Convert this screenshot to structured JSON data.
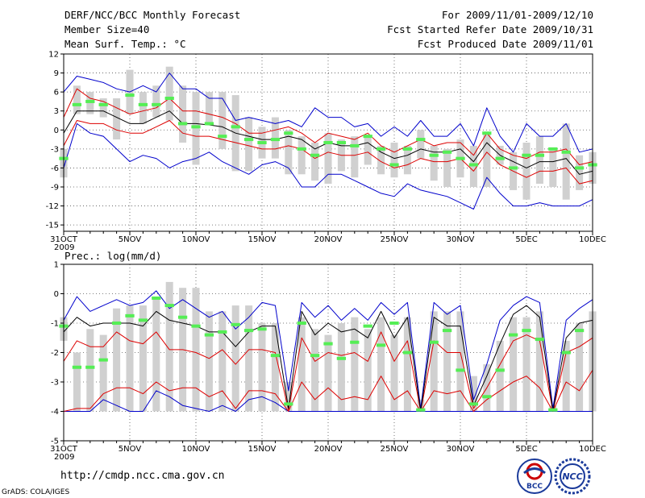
{
  "header": {
    "title": "DERF/NCC/BCC Monthly Forecast",
    "member_size": "Member Size=40",
    "variable": "Mean Surf. Temp.: °C",
    "period": "For 2009/11/01-2009/12/10",
    "started": "Fcst Started Refer Date 2009/10/31",
    "produced": "Fcst Produced Date 2009/11/01"
  },
  "footer": {
    "url": "http://cmdp.ncc.cma.gov.cn",
    "credit": "GrADS: COLA/IGES",
    "logo_bcc": "BCC",
    "logo_ncc": "NCC"
  },
  "colors": {
    "bar": "#d0d0d0",
    "median": "#55ee55",
    "mean": "#000000",
    "inner": "#dd0000",
    "outer": "#0000cc",
    "grid": "#555555"
  },
  "chart_data": [
    {
      "type": "line",
      "title": "Mean Surf. Temp.: °C",
      "x_labels": [
        {
          "day": 1,
          "label": "31OCT"
        },
        {
          "day": 6,
          "label": "5NOV"
        },
        {
          "day": 11,
          "label": "10NOV"
        },
        {
          "day": 16,
          "label": "15NOV"
        },
        {
          "day": 21,
          "label": "20NOV"
        },
        {
          "day": 26,
          "label": "25NOV"
        },
        {
          "day": 31,
          "label": "30NOV"
        },
        {
          "day": 36,
          "label": "5DEC"
        },
        {
          "day": 41,
          "label": "10DEC"
        }
      ],
      "x_sub_label": "2009",
      "xlim": [
        1,
        41
      ],
      "ylim": [
        -16,
        12
      ],
      "yticks": [
        12,
        9,
        6,
        3,
        0,
        -3,
        -6,
        -9,
        -12,
        -15
      ],
      "ytick_labels": [
        "12",
        "9",
        "6",
        "3",
        "0",
        "-3",
        "-6",
        "-9",
        "-12",
        "-15"
      ],
      "days": [
        1,
        2,
        3,
        4,
        5,
        6,
        7,
        8,
        9,
        10,
        11,
        12,
        13,
        14,
        15,
        16,
        17,
        18,
        19,
        20,
        21,
        22,
        23,
        24,
        25,
        26,
        27,
        28,
        29,
        30,
        31,
        32,
        33,
        34,
        35,
        36,
        37,
        38,
        39,
        40,
        41
      ],
      "bar_low": [
        -7.5,
        2.5,
        2.5,
        2.0,
        -1.5,
        2.5,
        1.0,
        2.0,
        1.5,
        -2.0,
        -5.5,
        1.0,
        -3.0,
        -6.5,
        -6.5,
        -4.5,
        -4.5,
        -7.0,
        -7.0,
        -8.0,
        -8.5,
        -6.5,
        -7.5,
        -5.5,
        -7.0,
        -7.5,
        -7.0,
        -4.5,
        -8.0,
        -9.0,
        -7.5,
        -9.0,
        -9.0,
        -5.5,
        -9.5,
        -11.0,
        -8.5,
        -9.0,
        -11.0,
        -9.5,
        -8.5
      ],
      "bar_high": [
        -3.0,
        7.0,
        6.0,
        5.0,
        5.0,
        9.5,
        6.0,
        7.0,
        10.0,
        7.0,
        6.0,
        6.0,
        6.0,
        5.5,
        2.0,
        0.5,
        2.0,
        0.0,
        -1.0,
        -2.0,
        -0.5,
        -1.5,
        -1.0,
        -1.0,
        -2.5,
        -2.0,
        -2.5,
        0.0,
        -2.5,
        -3.0,
        -1.5,
        -2.5,
        -0.5,
        -2.5,
        -3.5,
        -2.0,
        -1.0,
        -3.0,
        1.0,
        -4.0,
        -3.5
      ],
      "median": [
        -4.5,
        4.0,
        4.5,
        4.0,
        null,
        5.5,
        4.0,
        4.0,
        5.0,
        1.0,
        0.5,
        1.0,
        -1.0,
        0.5,
        -1.5,
        -2.0,
        -1.5,
        -0.5,
        -3.0,
        -4.0,
        -2.0,
        -2.0,
        -2.5,
        -1.0,
        -3.0,
        -5.5,
        -3.0,
        -1.5,
        -4.0,
        -3.5,
        -4.5,
        -5.5,
        -0.5,
        -4.5,
        -6.0,
        -4.0,
        -4.0,
        -3.0,
        -3.5,
        -6.0,
        -5.5
      ],
      "mean": [
        -0.5,
        3.0,
        3.0,
        3.0,
        2.0,
        1.0,
        1.0,
        2.0,
        3.0,
        1.0,
        1.0,
        0.8,
        0.5,
        -0.5,
        -1.0,
        -1.5,
        -1.5,
        -1.0,
        -1.5,
        -3.0,
        -2.0,
        -2.5,
        -2.5,
        -2.0,
        -3.5,
        -4.5,
        -4.0,
        -3.0,
        -3.5,
        -3.5,
        -3.0,
        -5.0,
        -2.0,
        -4.0,
        -5.0,
        -6.0,
        -5.0,
        -5.0,
        -4.5,
        -7.0,
        -6.5
      ],
      "inner_upper": [
        2.0,
        6.5,
        5.0,
        4.5,
        3.5,
        2.5,
        3.0,
        3.5,
        5.0,
        3.0,
        3.0,
        2.5,
        2.0,
        1.0,
        -0.5,
        -0.5,
        0.0,
        0.5,
        -0.5,
        -2.0,
        -0.5,
        -1.0,
        -1.5,
        -0.5,
        -2.5,
        -3.5,
        -2.5,
        -1.5,
        -2.5,
        -2.0,
        -2.0,
        -4.0,
        -0.5,
        -3.0,
        -4.0,
        -4.5,
        -3.5,
        -3.5,
        -3.0,
        -5.5,
        -5.0
      ],
      "inner_lower": [
        -2.5,
        1.5,
        1.0,
        1.0,
        0.0,
        -0.5,
        -0.5,
        0.5,
        1.5,
        -0.5,
        -1.0,
        -1.0,
        -1.5,
        -2.0,
        -2.5,
        -3.0,
        -3.0,
        -2.5,
        -3.0,
        -4.5,
        -3.5,
        -4.0,
        -4.0,
        -3.5,
        -5.0,
        -6.0,
        -5.5,
        -4.5,
        -5.0,
        -5.0,
        -4.5,
        -6.5,
        -3.5,
        -5.5,
        -6.5,
        -7.5,
        -6.5,
        -6.5,
        -6.0,
        -8.5,
        -8.0
      ],
      "outer_upper": [
        6.0,
        8.5,
        8.0,
        7.5,
        6.5,
        6.0,
        7.0,
        6.0,
        9.0,
        6.5,
        6.5,
        5.0,
        5.0,
        1.5,
        2.0,
        1.5,
        1.0,
        1.5,
        0.5,
        3.5,
        2.0,
        2.0,
        0.5,
        1.0,
        -1.0,
        0.5,
        -1.0,
        1.5,
        -1.0,
        -1.0,
        1.0,
        -2.5,
        3.5,
        -1.0,
        -3.5,
        1.0,
        -1.0,
        -1.0,
        1.0,
        -3.5,
        -3.0
      ],
      "outer_upper_dup": [],
      "outer_lower": [
        -6.0,
        1.0,
        -0.5,
        -1.0,
        -3.0,
        -5.0,
        -4.0,
        -4.5,
        -6.0,
        -5.0,
        -4.5,
        -3.5,
        -5.0,
        -6.0,
        -7.0,
        -5.5,
        -5.0,
        -6.0,
        -9.0,
        -9.0,
        -7.0,
        -7.0,
        -8.0,
        -9.0,
        -10.0,
        -10.5,
        -8.5,
        -9.5,
        -10.0,
        -10.5,
        -11.5,
        -12.5,
        -7.5,
        -10.0,
        -12.0,
        -12.0,
        -11.5,
        -12.0,
        -12.0,
        -12.0,
        -11.0
      ],
      "xlabel": "",
      "ylabel": ""
    },
    {
      "type": "line",
      "title": "Prec.: log(mm/d)",
      "x_labels": [
        {
          "day": 1,
          "label": "31OCT"
        },
        {
          "day": 6,
          "label": "5NOV"
        },
        {
          "day": 11,
          "label": "10NOV"
        },
        {
          "day": 16,
          "label": "15NOV"
        },
        {
          "day": 21,
          "label": "20NOV"
        },
        {
          "day": 26,
          "label": "25NOV"
        },
        {
          "day": 31,
          "label": "30NOV"
        },
        {
          "day": 36,
          "label": "5DEC"
        },
        {
          "day": 41,
          "label": "10DEC"
        }
      ],
      "x_sub_label": "2009",
      "xlim": [
        1,
        41
      ],
      "ylim": [
        -5,
        1
      ],
      "yticks": [
        1,
        0,
        -1,
        -2,
        -3,
        -4,
        -5
      ],
      "ytick_labels": [
        "1",
        "0",
        "-1",
        "-2",
        "-3",
        "-4",
        "-5"
      ],
      "days": [
        1,
        2,
        3,
        4,
        5,
        6,
        7,
        8,
        9,
        10,
        11,
        12,
        13,
        14,
        15,
        16,
        17,
        18,
        19,
        20,
        21,
        22,
        23,
        24,
        25,
        26,
        27,
        28,
        29,
        30,
        31,
        32,
        33,
        34,
        35,
        36,
        37,
        38,
        39,
        40,
        41
      ],
      "bar_low": [
        -1.6,
        -4,
        -4,
        -4,
        -4,
        -4,
        -4,
        -4,
        -4,
        -4,
        -4,
        -4,
        -4,
        -4,
        -4,
        -4,
        -4,
        -4,
        -4,
        -4,
        -4,
        -4,
        -4,
        -4,
        -4,
        -4,
        -4,
        -4,
        -4,
        -4,
        -4,
        -4,
        -4,
        -4,
        -4,
        -4,
        -4,
        -4,
        -4,
        -4,
        -4
      ],
      "bar_high": [
        -0.8,
        -2.0,
        -1.2,
        -1.4,
        -0.5,
        -0.4,
        -0.4,
        -0.2,
        0.4,
        0.2,
        0.2,
        -0.6,
        -0.6,
        -0.4,
        -0.4,
        -1.0,
        -1.0,
        -3.0,
        -0.8,
        -1.2,
        -1.4,
        -1.0,
        -0.8,
        -1.2,
        -0.8,
        -1.4,
        -0.8,
        -3.6,
        -0.6,
        -0.6,
        -0.6,
        -2.8,
        -2.4,
        -1.6,
        -0.8,
        -0.8,
        -0.6,
        -3.8,
        -1.6,
        -1.0,
        -0.6
      ],
      "median": [
        -1.1,
        -2.5,
        -2.5,
        -2.25,
        -1.0,
        -0.75,
        -0.9,
        -0.15,
        -0.4,
        -0.8,
        -1.1,
        -1.4,
        -1.3,
        -1.05,
        -1.25,
        -1.2,
        -2.1,
        -3.75,
        -1.0,
        -2.1,
        -1.7,
        -2.2,
        -1.65,
        -1.1,
        -1.75,
        -1.0,
        -2.0,
        -3.95,
        -1.65,
        -1.25,
        -2.6,
        -3.75,
        -3.5,
        -2.6,
        -1.4,
        -1.25,
        -1.55,
        -3.95,
        -2.0,
        -1.25,
        null
      ],
      "mean": [
        -1.3,
        -0.8,
        -1.1,
        -1.0,
        -1.0,
        -1.0,
        -1.1,
        -0.6,
        -0.9,
        -1.0,
        -1.1,
        -1.3,
        -1.3,
        -1.8,
        -1.3,
        -1.1,
        -1.1,
        -3.9,
        -0.6,
        -1.4,
        -1.0,
        -1.3,
        -1.2,
        -1.5,
        -0.6,
        -1.5,
        -0.8,
        -4.0,
        -0.8,
        -1.1,
        -1.1,
        -3.8,
        -2.8,
        -1.7,
        -0.7,
        -0.4,
        -0.8,
        -4.0,
        -1.5,
        -1.0,
        -0.9
      ],
      "inner_upper": [
        -2.3,
        -1.6,
        -1.8,
        -1.8,
        -1.3,
        -1.6,
        -1.7,
        -1.3,
        -1.9,
        -1.9,
        -2.0,
        -2.2,
        -1.9,
        -2.4,
        -1.9,
        -1.9,
        -2.0,
        -3.95,
        -1.5,
        -2.3,
        -2.0,
        -2.1,
        -2.0,
        -2.3,
        -1.3,
        -2.3,
        -1.6,
        -4.0,
        -1.6,
        -2.0,
        -2.0,
        -3.9,
        -3.2,
        -2.4,
        -1.6,
        -1.4,
        -1.6,
        -4.0,
        -2.0,
        -1.8,
        -1.5
      ],
      "inner_lower": [
        -4.0,
        -3.9,
        -3.9,
        -3.4,
        -3.2,
        -3.2,
        -3.4,
        -3.0,
        -3.3,
        -3.2,
        -3.2,
        -3.5,
        -3.3,
        -3.9,
        -3.3,
        -3.3,
        -3.4,
        -4.0,
        -3.0,
        -3.6,
        -3.2,
        -3.6,
        -3.5,
        -3.6,
        -2.8,
        -3.6,
        -3.3,
        -4.0,
        -3.3,
        -3.4,
        -3.3,
        -4.0,
        -3.6,
        -3.3,
        -3.0,
        -2.8,
        -3.2,
        -4.0,
        -3.0,
        -3.3,
        -2.6
      ],
      "outer_upper": [
        -0.9,
        -0.1,
        -0.6,
        -0.4,
        -0.2,
        -0.4,
        -0.3,
        0.1,
        -0.5,
        -0.2,
        -0.5,
        -0.8,
        -0.6,
        -1.2,
        -0.8,
        -0.3,
        -0.4,
        -3.3,
        -0.3,
        -0.8,
        -0.4,
        -0.9,
        -0.5,
        -0.9,
        -0.3,
        -0.7,
        -0.3,
        -3.9,
        -0.3,
        -0.7,
        -0.4,
        -3.6,
        -2.4,
        -0.9,
        -0.4,
        -0.1,
        -0.3,
        -3.9,
        -0.9,
        -0.5,
        -0.2
      ],
      "outer_lower": [
        -4,
        -4,
        -4,
        -3.6,
        -3.8,
        -4,
        -4,
        -3.3,
        -3.5,
        -3.8,
        -3.9,
        -4,
        -3.8,
        -4,
        -3.6,
        -3.5,
        -3.7,
        -4,
        -4,
        -4,
        -4,
        -4,
        -4,
        -4,
        -4,
        -4,
        -4,
        -4,
        -4,
        -4,
        -4,
        -4,
        -4,
        -4,
        -4,
        -4,
        -4,
        -4,
        -4,
        -4,
        -4
      ],
      "xlabel": "",
      "ylabel": ""
    }
  ]
}
